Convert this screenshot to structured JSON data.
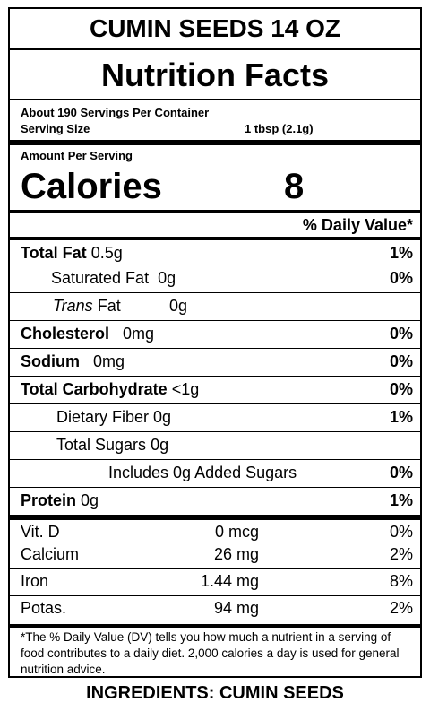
{
  "product_title": "CUMIN SEEDS 14 OZ",
  "heading": "Nutrition Facts",
  "servings_per_container": "About 190 Servings Per Container",
  "serving_size_label": "Serving Size",
  "serving_size_value": "1 tbsp (2.1g)",
  "amount_per_serving": "Amount Per Serving",
  "calories_label": "Calories",
  "calories_value": "8",
  "daily_value_header": "% Daily Value*",
  "nutrients": {
    "total_fat": {
      "label": "Total Fat",
      "amount": "0.5g",
      "dv": "1%"
    },
    "saturated_fat": {
      "label": "Saturated Fat",
      "amount": "0g",
      "dv": "0%"
    },
    "trans_fat": {
      "label_italic": "Trans",
      "label": "Fat",
      "amount": "0g"
    },
    "cholesterol": {
      "label": "Cholesterol",
      "amount": "0mg",
      "dv": "0%"
    },
    "sodium": {
      "label": "Sodium",
      "amount": "0mg",
      "dv": "0%"
    },
    "total_carbohydrate": {
      "label": "Total Carbohydrate",
      "amount": "<1g",
      "dv": "0%"
    },
    "dietary_fiber": {
      "label": "Dietary Fiber",
      "amount": "0g",
      "dv": "1%"
    },
    "total_sugars": {
      "label": "Total Sugars",
      "amount": "0g"
    },
    "added_sugars": {
      "label": "Includes 0g Added Sugars",
      "dv": "0%"
    },
    "protein": {
      "label": "Protein",
      "amount": "0g",
      "dv": "1%"
    }
  },
  "vitamins": [
    {
      "label": "Vit.  D",
      "amount": "0 mcg",
      "dv": "0%"
    },
    {
      "label": "Calcium",
      "amount": "26 mg",
      "dv": "2%"
    },
    {
      "label": "Iron",
      "amount": "1.44 mg",
      "dv": "8%"
    },
    {
      "label": "Potas.",
      "amount": "94 mg",
      "dv": "2%"
    }
  ],
  "footnote": "*The % Daily Value (DV) tells you how much a nutrient in a serving of food contributes to a daily diet. 2,000 calories a day is used for general nutrition advice.",
  "ingredients": "INGREDIENTS: CUMIN SEEDS"
}
